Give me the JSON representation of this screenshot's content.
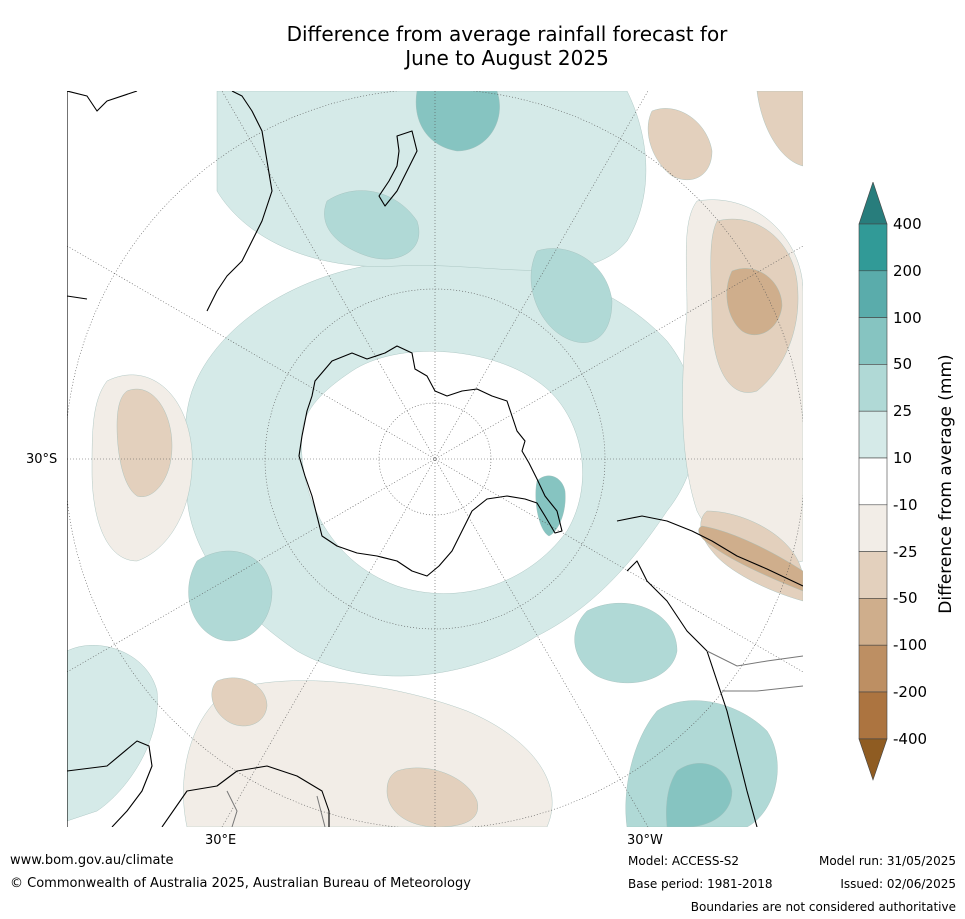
{
  "title": {
    "line1": "Difference from average rainfall forecast for",
    "line2": "June to August 2025"
  },
  "map": {
    "projection": "south polar stereographic",
    "lat_label": "30°S",
    "lon_labels": [
      "30°E",
      "30°W"
    ]
  },
  "colorbar": {
    "label": "Difference from average (mm)",
    "ticks": [
      "400",
      "200",
      "100",
      "50",
      "25",
      "10",
      "-10",
      "-25",
      "-50",
      "-100",
      "-200",
      "-400"
    ],
    "colors": {
      "ext_wet": "#287d7c",
      "wet_200_400": "#319a97",
      "wet_100_200": "#5aacab",
      "wet_50_100": "#86c4c1",
      "wet_25_50": "#b0d9d6",
      "wet_10_25": "#d5eae8",
      "neutral": "#ffffff",
      "dry_10_25": "#f2ede7",
      "dry_25_50": "#e3d0bd",
      "dry_50_100": "#cfae8c",
      "dry_100_200": "#bd8f63",
      "dry_200_400": "#ac7440",
      "ext_dry": "#8f5c22"
    }
  },
  "footer": {
    "url": "www.bom.gov.au/climate",
    "copyright": "© Commonwealth of Australia 2025, Australian Bureau of Meteorology",
    "model": "Model: ACCESS-S2",
    "base_period": "Base period: 1981-2018",
    "model_run": "Model run: 31/05/2025",
    "issued": "Issued: 02/06/2025",
    "disclaimer": "Boundaries are not considered authoritative"
  }
}
